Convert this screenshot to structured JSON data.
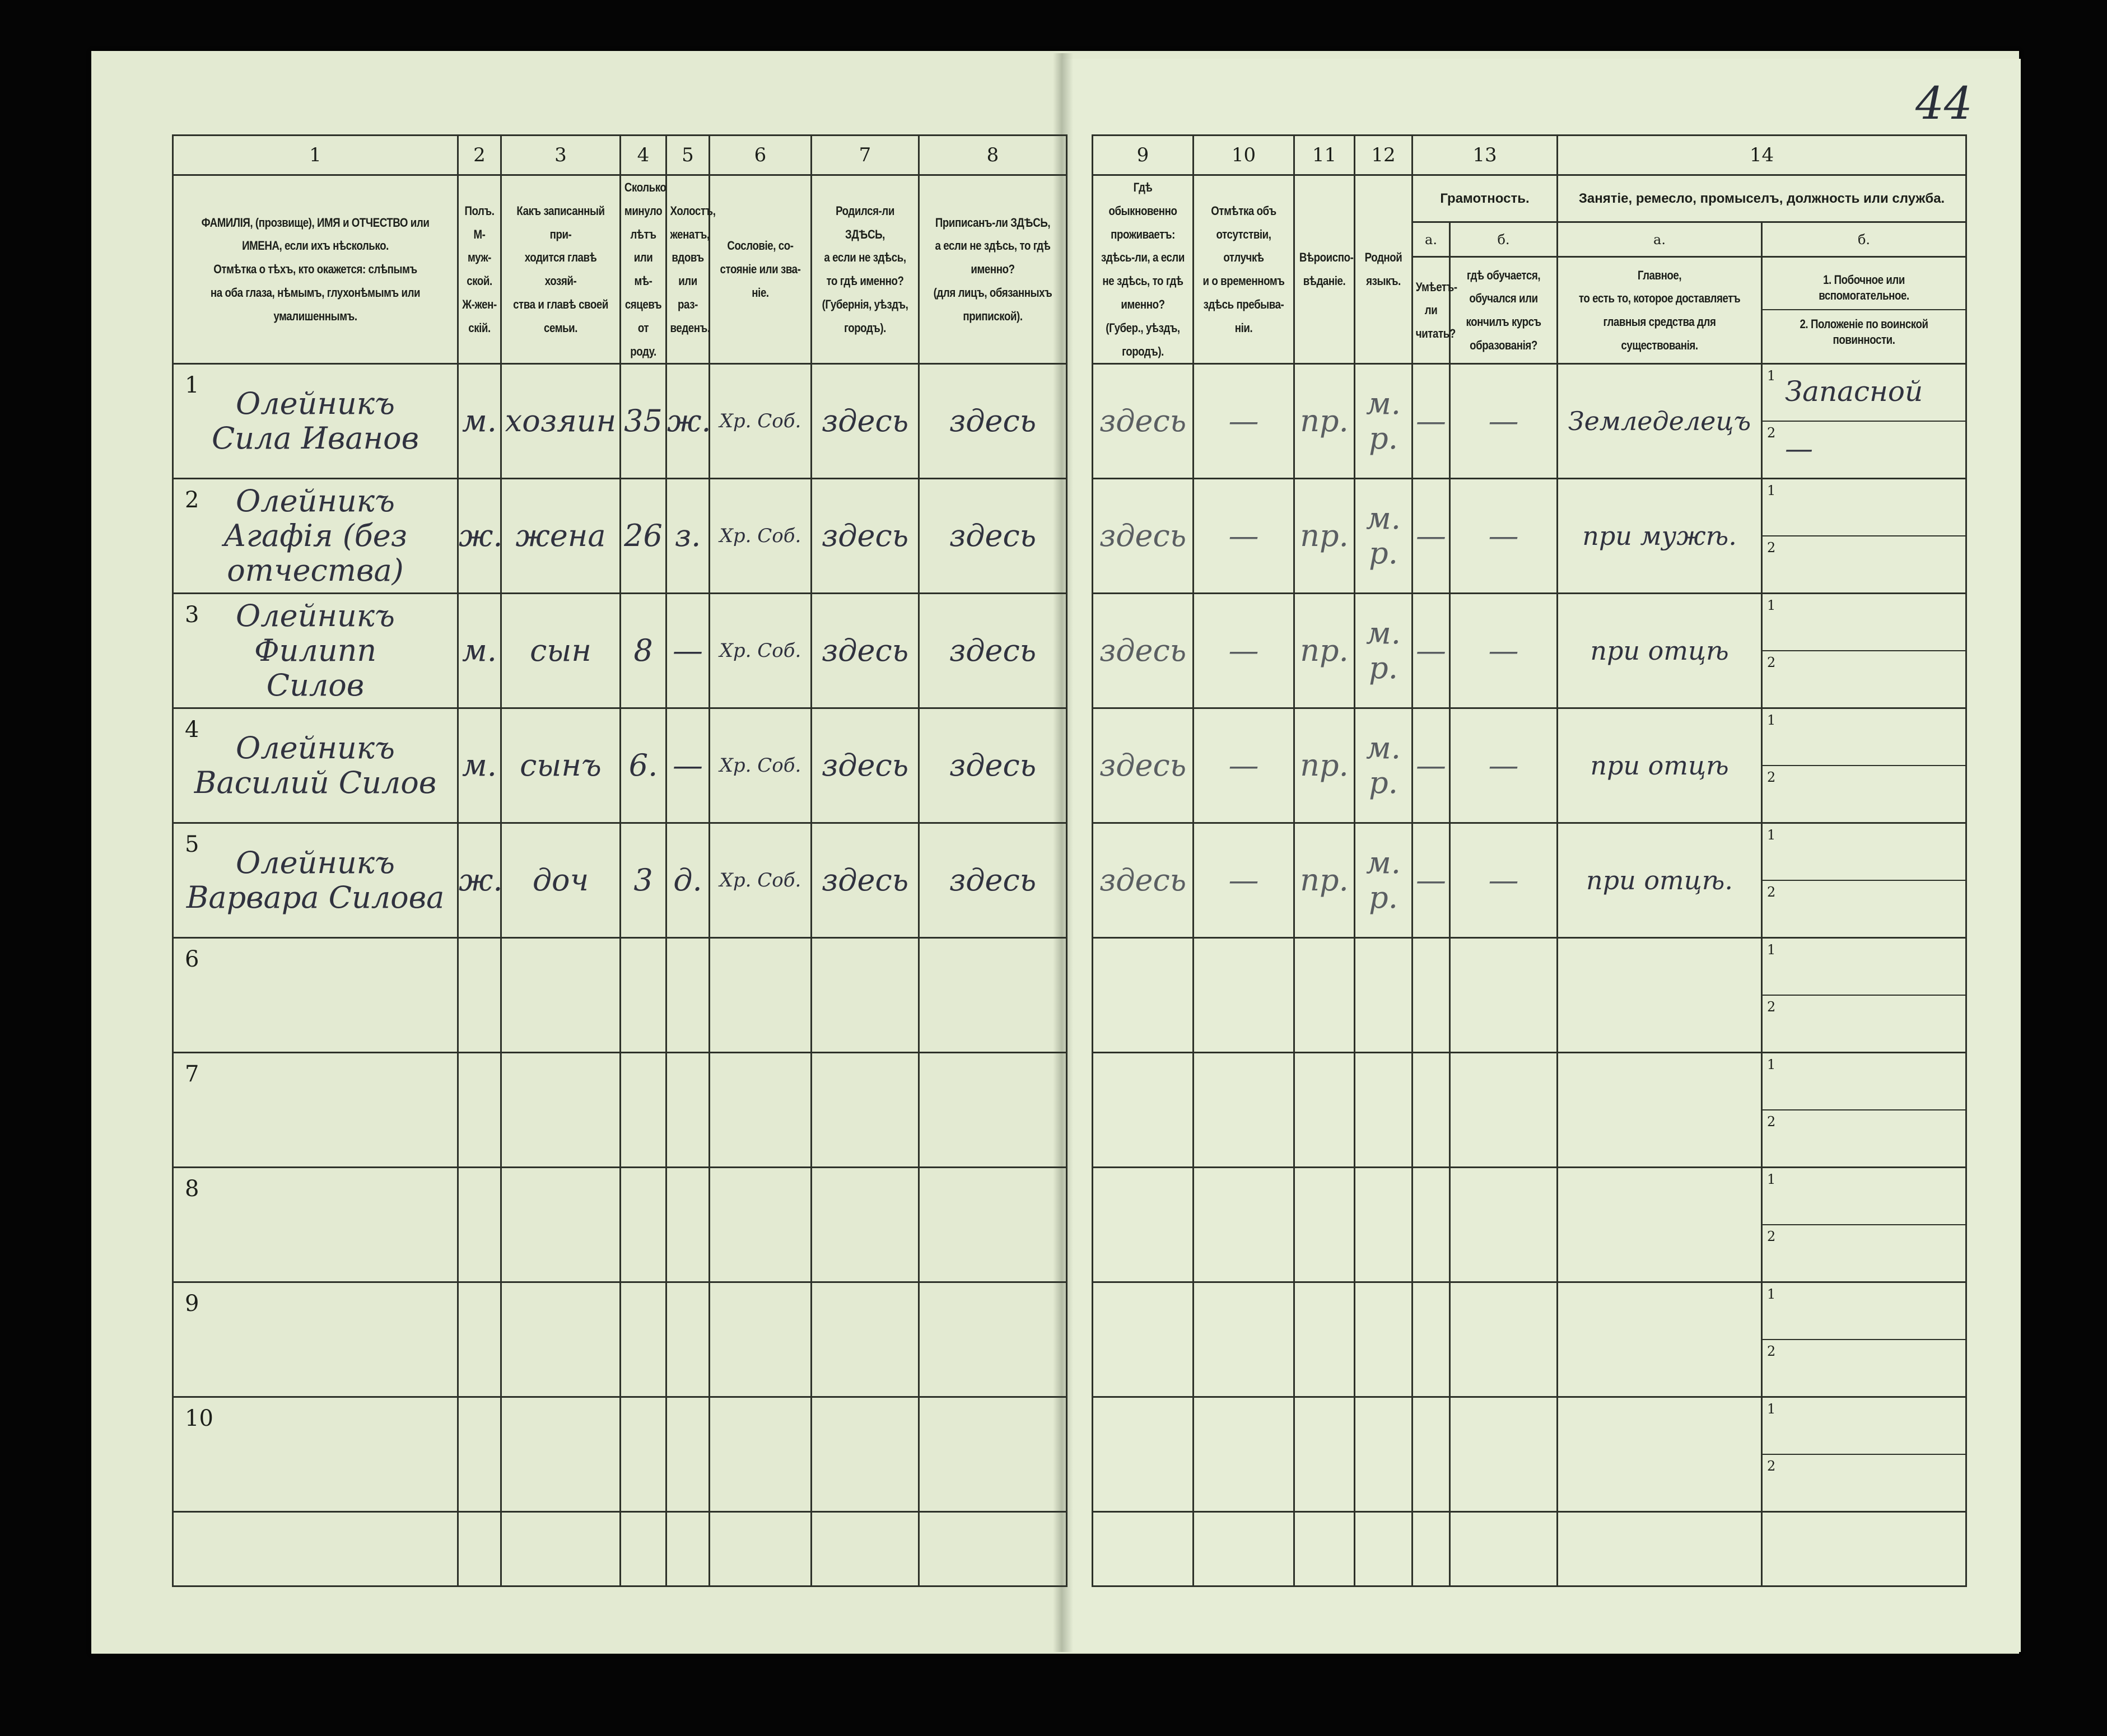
{
  "page_number": "44",
  "columns": {
    "n1": "1",
    "n2": "2",
    "n3": "3",
    "n4": "4",
    "n5": "5",
    "n6": "6",
    "n7": "7",
    "n8": "8",
    "n9": "9",
    "n10": "10",
    "n11": "11",
    "n12": "12",
    "n13": "13",
    "n14": "14",
    "h1": "ФАМИЛІЯ, (прозвище), ИМЯ и ОТЧЕСТВО или\nИМЕНА, если ихъ нѣсколько.\nОтмѣтка о тѣхъ, кто окажется: слѣпымъ\nна оба глаза, нѣмымъ, глухонѣмымъ или\nумалишеннымъ.",
    "h2": "Полъ.\nМ-муж-\nской.\nЖ-жен-\nскій.",
    "h3": "Какъ записанный при-\nходится главѣ хозяй-\nства и главѣ своей\nсемьи.",
    "h4": "Сколько\nминуло\nлѣтъ\nили мѣ-\nсяцевъ\nот роду.",
    "h5": "Холостъ,\nженатъ,\nвдовъ\nили раз-\nведенъ.",
    "h6": "Сословіе, со-\nстояніе или зва-\nніе.",
    "h7": "Родился-ли ЗДѢСЬ,\nа если не здѣсь,\nто гдѣ именно?\n(Губернія, уѣздъ, городъ).",
    "h8": "Приписанъ-ли ЗДѢСЬ,\nа если не здѣсь, то гдѣ\nименно?\n(для лицъ, обязанныхъ\nприпиской).",
    "h9": "Гдѣ обыкновенно\nпроживаетъ:\nздѣсь-ли, а если\nне здѣсь, то гдѣ\nименно?\n(Губер., уѣздъ, городъ).",
    "h10": "Отмѣтка объ\nотсутствіи, отлучкѣ\nи о временномъ\nздѣсь пребыва-\nніи.",
    "h11": "Вѣроиспо-\nвѣданіе.",
    "h12": "Родной\nязыкъ.",
    "h13": "Грамотность.",
    "h13a": "а.",
    "h13b": "б.",
    "h13a_text": "Умѣетъ-\nли\nчитать?",
    "h13b_text": "гдѣ обучается,\nобучался или\nкончилъ курсъ\nобразованія?",
    "h14": "Занятіе, ремесло, промыселъ, должность или служба.",
    "h14a": "а.",
    "h14b": "б.",
    "h14a_text": "Главное,\nто есть то, которое доставляетъ\nглавныя средства для существованія.",
    "h14b_1": "1. Побочное или вспомогательное.",
    "h14b_2": "2. Положеніе по воинской повинности."
  },
  "rows": [
    {
      "no": "1",
      "name": "Олейникъ\nСила Иванов",
      "sex": "м.",
      "relation": "хозяин",
      "age": "35",
      "marital": "ж.",
      "estate": "Хр. Соб.",
      "born": "здесь",
      "registered": "здесь",
      "resides": "здесь",
      "absence": "—",
      "religion": "пр.",
      "language": "м. р.",
      "reads": "—",
      "education": "—",
      "occupation": "Земледелецъ",
      "secondary_1": "Запасной",
      "secondary_2": "—"
    },
    {
      "no": "2",
      "name": "Олейникъ\nАгафія (без\nотчества)",
      "sex": "ж.",
      "relation": "жена",
      "age": "26",
      "marital": "з.",
      "estate": "Хр. Соб.",
      "born": "здесь",
      "registered": "здесь",
      "resides": "здесь",
      "absence": "—",
      "religion": "пр.",
      "language": "м. р.",
      "reads": "—",
      "education": "—",
      "occupation": "при мужѣ.",
      "secondary_1": "",
      "secondary_2": ""
    },
    {
      "no": "3",
      "name": "Олейникъ\nФилипп\nСилов",
      "sex": "м.",
      "relation": "сын",
      "age": "8",
      "marital": "—",
      "estate": "Хр. Соб.",
      "born": "здесь",
      "registered": "здесь",
      "resides": "здесь",
      "absence": "—",
      "religion": "пр.",
      "language": "м. р.",
      "reads": "—",
      "education": "—",
      "occupation": "при отцѣ",
      "secondary_1": "",
      "secondary_2": ""
    },
    {
      "no": "4",
      "name": "Олейникъ\nВасилий Силов",
      "sex": "м.",
      "relation": "сынъ",
      "age": "6.",
      "marital": "—",
      "estate": "Хр. Соб.",
      "born": "здесь",
      "registered": "здесь",
      "resides": "здесь",
      "absence": "—",
      "religion": "пр.",
      "language": "м. р.",
      "reads": "—",
      "education": "—",
      "occupation": "при отцѣ",
      "secondary_1": "",
      "secondary_2": ""
    },
    {
      "no": "5",
      "name": "Олейникъ\nВарвара Силова",
      "sex": "ж.",
      "relation": "доч",
      "age": "3",
      "marital": "д.",
      "estate": "Хр. Соб.",
      "born": "здесь",
      "registered": "здесь",
      "resides": "здесь",
      "absence": "—",
      "religion": "пр.",
      "language": "м. р.",
      "reads": "—",
      "education": "—",
      "occupation": "при отцѣ.",
      "secondary_1": "",
      "secondary_2": ""
    },
    {
      "no": "6",
      "name": "",
      "sex": "",
      "relation": "",
      "age": "",
      "marital": "",
      "estate": "",
      "born": "",
      "registered": "",
      "resides": "",
      "absence": "",
      "religion": "",
      "language": "",
      "reads": "",
      "education": "",
      "occupation": "",
      "secondary_1": "",
      "secondary_2": ""
    },
    {
      "no": "7",
      "name": "",
      "sex": "",
      "relation": "",
      "age": "",
      "marital": "",
      "estate": "",
      "born": "",
      "registered": "",
      "resides": "",
      "absence": "",
      "religion": "",
      "language": "",
      "reads": "",
      "education": "",
      "occupation": "",
      "secondary_1": "",
      "secondary_2": ""
    },
    {
      "no": "8",
      "name": "",
      "sex": "",
      "relation": "",
      "age": "",
      "marital": "",
      "estate": "",
      "born": "",
      "registered": "",
      "resides": "",
      "absence": "",
      "religion": "",
      "language": "",
      "reads": "",
      "education": "",
      "occupation": "",
      "secondary_1": "",
      "secondary_2": ""
    },
    {
      "no": "9",
      "name": "",
      "sex": "",
      "relation": "",
      "age": "",
      "marital": "",
      "estate": "",
      "born": "",
      "registered": "",
      "resides": "",
      "absence": "",
      "religion": "",
      "language": "",
      "reads": "",
      "education": "",
      "occupation": "",
      "secondary_1": "",
      "secondary_2": ""
    },
    {
      "no": "10",
      "name": "",
      "sex": "",
      "relation": "",
      "age": "",
      "marital": "",
      "estate": "",
      "born": "",
      "registered": "",
      "resides": "",
      "absence": "",
      "religion": "",
      "language": "",
      "reads": "",
      "education": "",
      "occupation": "",
      "secondary_1": "",
      "secondary_2": ""
    }
  ],
  "sub_labels": {
    "one": "1",
    "two": "2"
  }
}
